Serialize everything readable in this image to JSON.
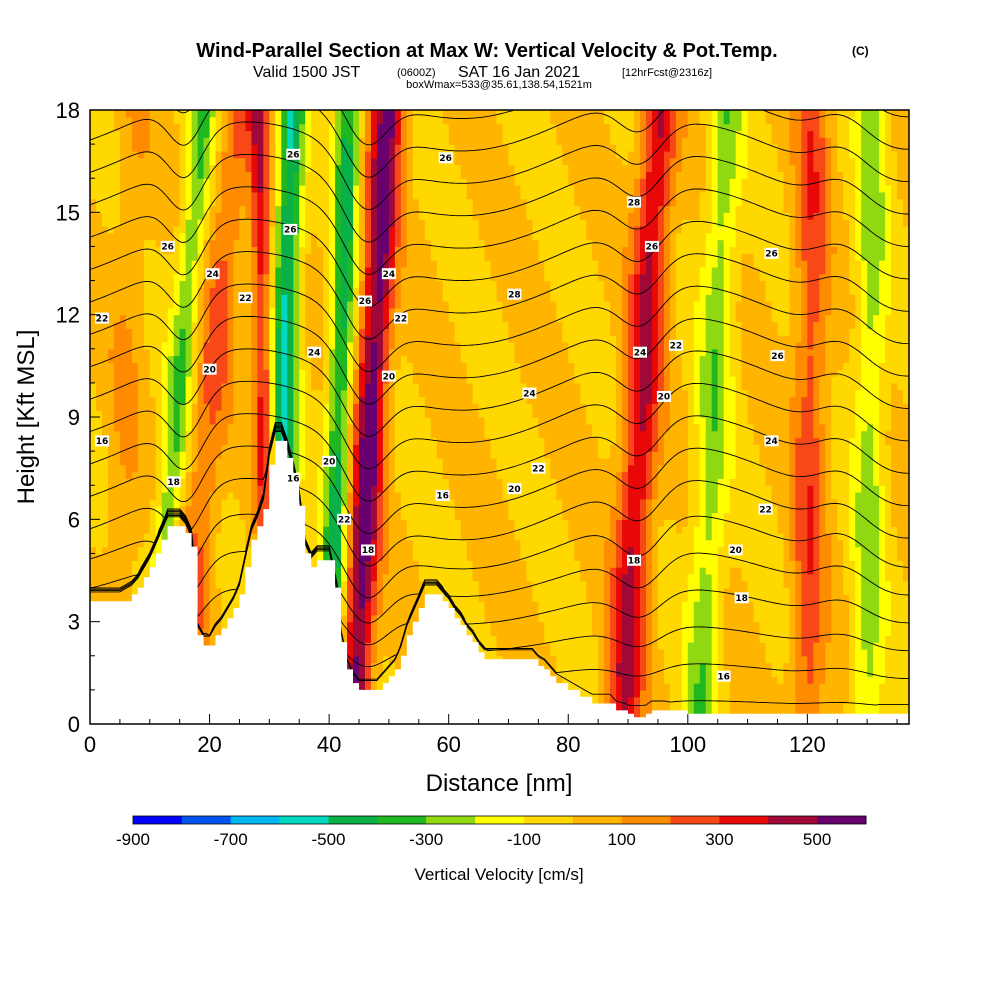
{
  "title": {
    "main": "Wind-Parallel Section at Max W: Vertical Velocity & Pot.Temp.",
    "copyright": "(C)",
    "valid_prefix": "Valid 1500 JST",
    "valid_utc": "(0600Z)",
    "valid_date": "SAT 16 Jan 2021",
    "forecast": "[12hrFcst@2316z]",
    "box_info": "boxWmax=533@35.61,138.54,1521m"
  },
  "colorbar": {
    "label": "Vertical Velocity [cm/s]",
    "tick_labels": [
      "-900",
      "-700",
      "-500",
      "-300",
      "-100",
      "100",
      "300",
      "500"
    ],
    "bins": [
      {
        "min": -900,
        "max": -800,
        "color": "#0000ff"
      },
      {
        "min": -800,
        "max": -700,
        "color": "#0055ee"
      },
      {
        "min": -700,
        "max": -600,
        "color": "#00b8f0"
      },
      {
        "min": -600,
        "max": -500,
        "color": "#00d8c0"
      },
      {
        "min": -500,
        "max": -400,
        "color": "#0ab048"
      },
      {
        "min": -400,
        "max": -300,
        "color": "#20b820"
      },
      {
        "min": -300,
        "max": -200,
        "color": "#90d810"
      },
      {
        "min": -200,
        "max": -100,
        "color": "#ffff00"
      },
      {
        "min": -100,
        "max": 0,
        "color": "#ffd800"
      },
      {
        "min": 0,
        "max": 100,
        "color": "#ffb400"
      },
      {
        "min": 100,
        "max": 200,
        "color": "#ff8c00"
      },
      {
        "min": 200,
        "max": 300,
        "color": "#f84818"
      },
      {
        "min": 300,
        "max": 400,
        "color": "#e80808"
      },
      {
        "min": 400,
        "max": 500,
        "color": "#a00838"
      },
      {
        "min": 500,
        "max": 600,
        "color": "#680070"
      }
    ]
  },
  "chart_data": {
    "type": "heatmap",
    "xlabel": "Distance [nm]",
    "ylabel": "Height [Kft MSL]",
    "xlim": [
      0,
      137
    ],
    "ylim": [
      0,
      18
    ],
    "xticks": [
      0,
      20,
      40,
      60,
      80,
      100,
      120
    ],
    "yticks": [
      0,
      3,
      6,
      9,
      12,
      15,
      18
    ],
    "field": "Vertical Velocity [cm/s]",
    "contour_field": "Potential Temperature",
    "terrain_profile": {
      "x": [
        0,
        5,
        7,
        8,
        9,
        10,
        11,
        12,
        13,
        14,
        15,
        16,
        17,
        18,
        19,
        20,
        21,
        22,
        23,
        24,
        25,
        26,
        27,
        28,
        29,
        30,
        31,
        32,
        33,
        34,
        35,
        36,
        37,
        38,
        39,
        40,
        41,
        42,
        43,
        44,
        45,
        46,
        47,
        48,
        49,
        50,
        51,
        52,
        53,
        54,
        55,
        56,
        57,
        58,
        59,
        60,
        61,
        62,
        63,
        64,
        65,
        66,
        67,
        68,
        74,
        75,
        76,
        77,
        78,
        80,
        82,
        84,
        85,
        86,
        87,
        88,
        90,
        91,
        92,
        93,
        94,
        96,
        100,
        110,
        120,
        130,
        137
      ],
      "y": [
        3.6,
        3.6,
        3.8,
        4.0,
        4.3,
        4.6,
        5.0,
        5.4,
        5.8,
        5.8,
        5.8,
        5.6,
        5.2,
        2.6,
        2.3,
        2.3,
        2.6,
        2.8,
        3.1,
        3.4,
        3.8,
        4.6,
        5.4,
        5.8,
        6.3,
        7.6,
        8.3,
        8.3,
        7.8,
        7.2,
        6.4,
        5.0,
        4.6,
        4.8,
        4.8,
        4.8,
        4.0,
        2.4,
        1.6,
        1.2,
        1.0,
        1.0,
        1.0,
        1.0,
        1.2,
        1.4,
        1.6,
        2.0,
        2.6,
        3.0,
        3.4,
        3.8,
        3.8,
        3.8,
        3.6,
        3.4,
        3.1,
        2.9,
        2.6,
        2.4,
        2.1,
        1.9,
        1.9,
        1.9,
        1.9,
        1.7,
        1.6,
        1.4,
        1.2,
        1.0,
        0.8,
        0.6,
        0.6,
        0.6,
        0.6,
        0.4,
        0.3,
        0.2,
        0.2,
        0.3,
        0.4,
        0.4,
        0.3,
        0.3,
        0.3,
        0.3,
        0.3
      ]
    },
    "updraft_bands": [
      {
        "name": "band-a",
        "x": 15,
        "slope": 0.55,
        "width": 3.0,
        "amp": 220
      },
      {
        "name": "band-b",
        "x": 30,
        "slope": -0.1,
        "width": 1.6,
        "amp": 360
      },
      {
        "name": "band-c",
        "x": 44,
        "slope": 0.32,
        "width": 2.6,
        "amp": 560
      },
      {
        "name": "band-d",
        "x": 89,
        "slope": 0.35,
        "width": 3.0,
        "amp": 420
      },
      {
        "name": "band-e",
        "x": 120,
        "slope": 0.05,
        "width": 2.8,
        "amp": 260
      },
      {
        "name": "band-f",
        "x": 4,
        "slope": 0.2,
        "width": 3.0,
        "amp": 90
      }
    ],
    "downdraft_bands": [
      {
        "name": "band-g",
        "x": 10,
        "slope": 0.5,
        "width": 2.2,
        "amp": -300
      },
      {
        "name": "band-h",
        "x": 31,
        "slope": 0.15,
        "width": 2.2,
        "amp": -520
      },
      {
        "name": "band-i",
        "x": 40,
        "slope": 0.18,
        "width": 2.0,
        "amp": -440
      },
      {
        "name": "band-j",
        "x": 102,
        "slope": 0.25,
        "width": 2.8,
        "amp": -260
      },
      {
        "name": "band-k",
        "x": 130,
        "slope": 0.05,
        "width": 2.6,
        "amp": -240
      }
    ],
    "contour_labels": [
      {
        "text": "16",
        "x": 2,
        "y": 8.3
      },
      {
        "text": "22",
        "x": 2,
        "y": 11.9
      },
      {
        "text": "26",
        "x": 13,
        "y": 14.0
      },
      {
        "text": "24",
        "x": 20.5,
        "y": 13.2
      },
      {
        "text": "22",
        "x": 26,
        "y": 12.5
      },
      {
        "text": "20",
        "x": 20,
        "y": 10.4
      },
      {
        "text": "18",
        "x": 14,
        "y": 7.1
      },
      {
        "text": "26",
        "x": 34,
        "y": 16.7
      },
      {
        "text": "26",
        "x": 33.5,
        "y": 14.5
      },
      {
        "text": "24",
        "x": 37.5,
        "y": 10.9
      },
      {
        "text": "20",
        "x": 40,
        "y": 7.7
      },
      {
        "text": "22",
        "x": 42.5,
        "y": 6.0
      },
      {
        "text": "16",
        "x": 34,
        "y": 7.2
      },
      {
        "text": "26",
        "x": 46,
        "y": 12.4
      },
      {
        "text": "24",
        "x": 50,
        "y": 13.2
      },
      {
        "text": "22",
        "x": 52,
        "y": 11.9
      },
      {
        "text": "20",
        "x": 50,
        "y": 10.2
      },
      {
        "text": "18",
        "x": 46.5,
        "y": 5.1
      },
      {
        "text": "26",
        "x": 59.5,
        "y": 16.6
      },
      {
        "text": "28",
        "x": 71,
        "y": 12.6
      },
      {
        "text": "24",
        "x": 73.5,
        "y": 9.7
      },
      {
        "text": "22",
        "x": 75,
        "y": 7.5
      },
      {
        "text": "20",
        "x": 71,
        "y": 6.9
      },
      {
        "text": "16",
        "x": 59,
        "y": 6.7
      },
      {
        "text": "28",
        "x": 91,
        "y": 15.3
      },
      {
        "text": "26",
        "x": 94,
        "y": 14.0
      },
      {
        "text": "24",
        "x": 92,
        "y": 10.9
      },
      {
        "text": "22",
        "x": 98,
        "y": 11.1
      },
      {
        "text": "20",
        "x": 96,
        "y": 9.6
      },
      {
        "text": "18",
        "x": 91,
        "y": 4.8
      },
      {
        "text": "26",
        "x": 114,
        "y": 13.8
      },
      {
        "text": "26",
        "x": 115,
        "y": 10.8
      },
      {
        "text": "24",
        "x": 114,
        "y": 8.3
      },
      {
        "text": "22",
        "x": 113,
        "y": 6.3
      },
      {
        "text": "20",
        "x": 108,
        "y": 5.1
      },
      {
        "text": "18",
        "x": 109,
        "y": 3.7
      },
      {
        "text": "16",
        "x": 106,
        "y": 1.4
      }
    ]
  }
}
